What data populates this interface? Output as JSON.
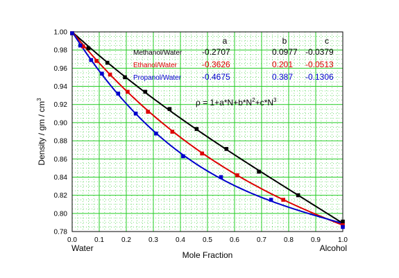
{
  "chart_data": {
    "type": "scatter",
    "xlabel": "Mole Fraction",
    "x_left_label": "Water",
    "x_right_label": "Alcohol",
    "ylabel_parts": [
      "Density / gm / cm",
      "3"
    ],
    "xlim": [
      0.0,
      1.0
    ],
    "ylim": [
      0.78,
      1.0
    ],
    "x_ticks": [
      "0.0",
      "0.1",
      "0.2",
      "0.3",
      "0.4",
      "0.5",
      "0.6",
      "0.7",
      "0.8",
      "0.9",
      "1.0"
    ],
    "y_ticks": [
      "0.78",
      "0.80",
      "0.82",
      "0.84",
      "0.86",
      "0.88",
      "0.90",
      "0.92",
      "0.94",
      "0.96",
      "0.98",
      "1.00"
    ],
    "grid": true,
    "equation_parts": [
      "ρ = 1+a*N+b*N",
      "2",
      "+c*N",
      "3"
    ],
    "coef_headers": [
      "a",
      "b",
      "c"
    ],
    "series": [
      {
        "name": "Methanol/Water",
        "color": "#000000",
        "a": "-0.2707",
        "b": "0.0977",
        "c": "-0.0379",
        "fit": [
          -0.2707,
          0.0977,
          -0.0379
        ],
        "points": [
          [
            0.0,
            0.9985
          ],
          [
            0.06,
            0.982
          ],
          [
            0.13,
            0.966
          ],
          [
            0.195,
            0.95
          ],
          [
            0.27,
            0.934
          ],
          [
            0.36,
            0.915
          ],
          [
            0.46,
            0.893
          ],
          [
            0.57,
            0.871
          ],
          [
            0.69,
            0.846
          ],
          [
            0.835,
            0.82
          ],
          [
            1.0,
            0.791
          ]
        ]
      },
      {
        "name": "Ethanol/Water",
        "color": "#dd0000",
        "a": "-0.3626",
        "b": "0.201",
        "c": "-0.0513",
        "fit": [
          -0.3626,
          0.201,
          -0.0513
        ],
        "points": [
          [
            0.0,
            0.9985
          ],
          [
            0.04,
            0.984
          ],
          [
            0.09,
            0.968
          ],
          [
            0.14,
            0.953
          ],
          [
            0.205,
            0.934
          ],
          [
            0.28,
            0.912
          ],
          [
            0.37,
            0.89
          ],
          [
            0.48,
            0.866
          ],
          [
            0.61,
            0.842
          ],
          [
            0.78,
            0.815
          ],
          [
            1.0,
            0.787
          ]
        ]
      },
      {
        "name": "Propanol/Water",
        "color": "#0000cc",
        "a": "-0.4675",
        "b": "0.387",
        "c": "-0.1306",
        "fit": [
          -0.4675,
          0.387,
          -0.1306
        ],
        "points": [
          [
            0.0,
            0.9985
          ],
          [
            0.03,
            0.985
          ],
          [
            0.07,
            0.969
          ],
          [
            0.11,
            0.954
          ],
          [
            0.17,
            0.932
          ],
          [
            0.235,
            0.91
          ],
          [
            0.31,
            0.888
          ],
          [
            0.41,
            0.863
          ],
          [
            0.55,
            0.84
          ],
          [
            0.735,
            0.815
          ],
          [
            1.0,
            0.785
          ]
        ]
      }
    ]
  }
}
